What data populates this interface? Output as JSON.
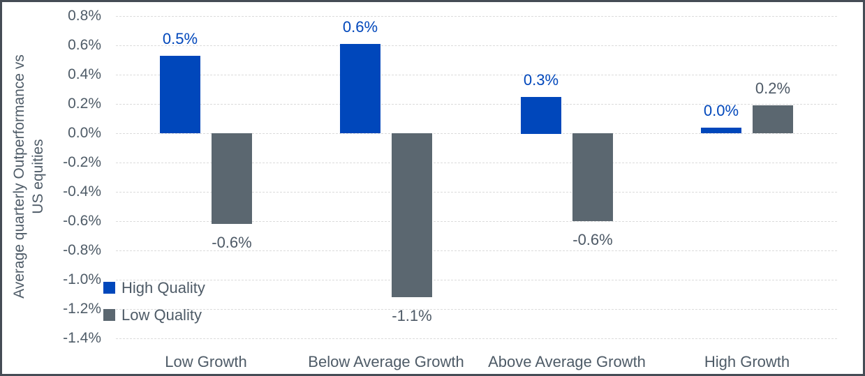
{
  "chart_data": {
    "type": "bar",
    "title": "",
    "ylabel": "Average quarterly Outperformance vs US equities",
    "ylabel_lines": [
      "Average quarterly Outperformance vs",
      "US equities"
    ],
    "categories": [
      "Low Growth",
      "Below Average Growth",
      "Above Average Growth",
      "High Growth"
    ],
    "series": [
      {
        "name": "High Quality",
        "color": "#0047BB",
        "label_color": "#0047BB",
        "values": [
          0.53,
          0.61,
          0.25,
          0.04
        ],
        "value_labels": [
          "0.5%",
          "0.6%",
          "0.3%",
          "0.0%"
        ]
      },
      {
        "name": "Low Quality",
        "color": "#5B6770",
        "label_color": "#4D5966",
        "values": [
          -0.62,
          -1.12,
          -0.6,
          0.19
        ],
        "value_labels": [
          "-0.6%",
          "-1.1%",
          "-0.6%",
          "0.2%"
        ]
      }
    ],
    "y_axis": {
      "min": -1.4,
      "max": 0.8,
      "step": 0.2,
      "tick_labels": [
        "0.8%",
        "0.6%",
        "0.4%",
        "0.2%",
        "0.0%",
        "-0.2%",
        "-0.4%",
        "-0.6%",
        "-0.8%",
        "-1.0%",
        "-1.2%",
        "-1.4%"
      ]
    },
    "ylim": [
      -1.4,
      0.8
    ],
    "grid": "horizontal-dashed",
    "legend": {
      "position": "inside-bottom-left"
    }
  },
  "colors": {
    "bar_blue": "#0047BB",
    "bar_gray": "#5B6770",
    "axis_text": "#4E5B67",
    "gridline": "#DBDBDB",
    "frame_border": "#454C55",
    "background": "#FFFFFF"
  }
}
